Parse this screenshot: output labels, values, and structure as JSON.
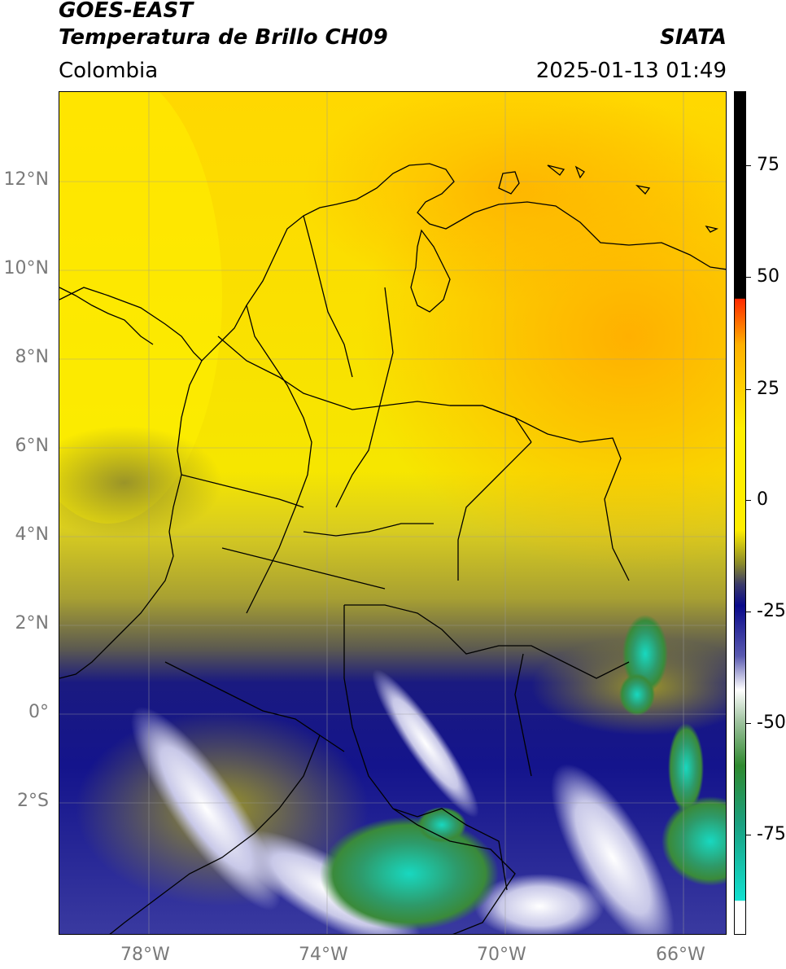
{
  "header": {
    "satellite": "GOES-EAST",
    "product": "Temperatura de Brillo CH09",
    "region": "Colombia",
    "agency": "SIATA",
    "datetime": "2025-01-13 01:49"
  },
  "map": {
    "lat_labels": [
      "12°N",
      "10°N",
      "8°N",
      "6°N",
      "4°N",
      "2°N",
      "0°",
      "2°S"
    ],
    "lon_labels": [
      "78°W",
      "74°W",
      "70°W",
      "66°W"
    ],
    "extent": {
      "lon_min": -80,
      "lon_max": -65,
      "lat_min": -5,
      "lat_max": 14
    },
    "grid": true
  },
  "colorbar": {
    "ticks": [
      "75",
      "50",
      "25",
      "0",
      "-25",
      "-50",
      "-75"
    ],
    "range": [
      -95,
      90
    ],
    "unit_hint": "°C",
    "colors": {
      "black": "#000000",
      "red": "#ff2a00",
      "orange": "#ffb000",
      "yellow": "#ffee00",
      "olive": "#8a8a2a",
      "navy": "#0a0a8a",
      "white": "#ffffff",
      "green": "#2f8a2f",
      "cyan": "#12e0d0"
    }
  }
}
